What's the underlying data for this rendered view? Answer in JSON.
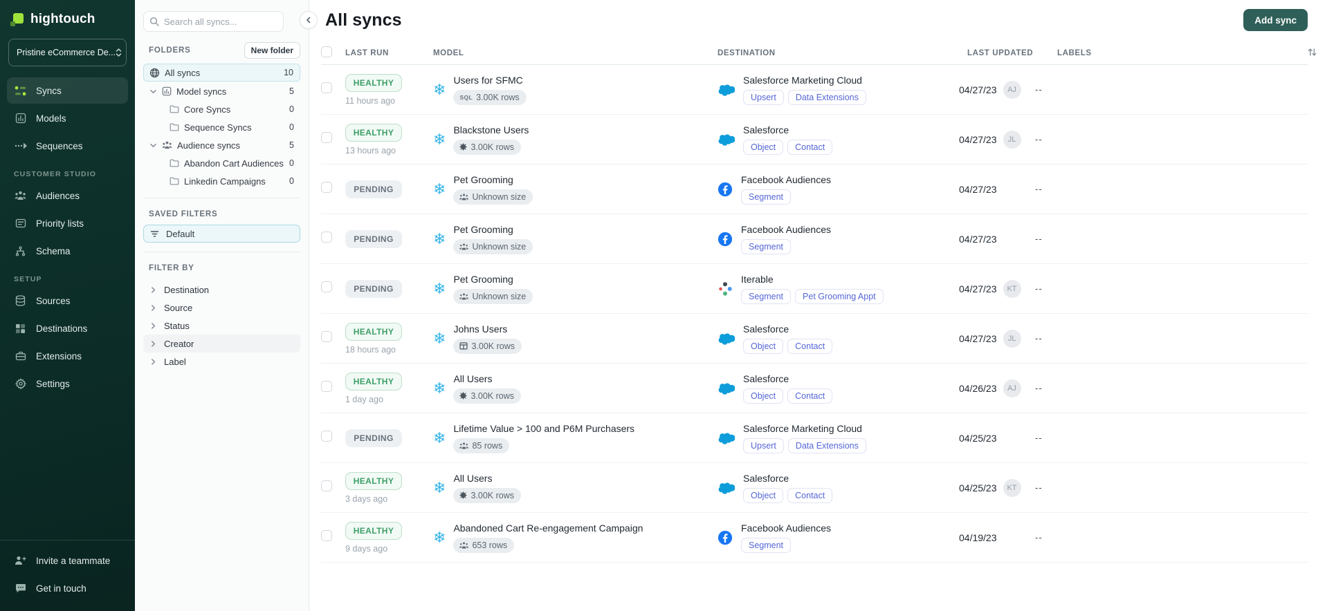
{
  "brand": {
    "name": "hightouch",
    "workspace": "Pristine eCommerce De..."
  },
  "colors": {
    "brand_lime": "#9fe23b",
    "sidebar_bg": "#0c2e29",
    "add_button": "#2e5f58",
    "healthy_green": "#3e9e68",
    "pending_gray": "#68727c",
    "snowflake_blue": "#35b4e7",
    "salesforce_blue": "#0d9dda",
    "facebook_blue": "#1877f2",
    "tag_blue": "#5566d6",
    "selected_row_bg": "#ecf7f9"
  },
  "sidebar": {
    "nav": [
      {
        "label": "Syncs",
        "icon": "syncs",
        "active": true
      },
      {
        "label": "Models",
        "icon": "models",
        "active": false
      },
      {
        "label": "Sequences",
        "icon": "sequences",
        "active": false
      }
    ],
    "sections": [
      {
        "title": "CUSTOMER STUDIO",
        "items": [
          {
            "label": "Audiences",
            "icon": "audiences"
          },
          {
            "label": "Priority lists",
            "icon": "priority"
          },
          {
            "label": "Schema",
            "icon": "schema"
          }
        ]
      },
      {
        "title": "SETUP",
        "items": [
          {
            "label": "Sources",
            "icon": "sources"
          },
          {
            "label": "Destinations",
            "icon": "destinations"
          },
          {
            "label": "Extensions",
            "icon": "extensions"
          },
          {
            "label": "Settings",
            "icon": "settings"
          }
        ]
      }
    ],
    "footer": [
      {
        "label": "Invite a teammate",
        "icon": "invite"
      },
      {
        "label": "Get in touch",
        "icon": "chat"
      }
    ]
  },
  "explorer": {
    "search_placeholder": "Search all syncs...",
    "folders_title": "FOLDERS",
    "new_folder_label": "New folder",
    "folders": [
      {
        "label": "All syncs",
        "count": 10,
        "icon": "globe",
        "depth": 0,
        "selected": true,
        "expandable": false
      },
      {
        "label": "Model syncs",
        "count": 5,
        "icon": "model-folder",
        "depth": 1,
        "selected": false,
        "expandable": true
      },
      {
        "label": "Core Syncs",
        "count": 0,
        "icon": "folder",
        "depth": 2,
        "selected": false,
        "expandable": false
      },
      {
        "label": "Sequence Syncs",
        "count": 0,
        "icon": "folder",
        "depth": 2,
        "selected": false,
        "expandable": false
      },
      {
        "label": "Audience syncs",
        "count": 5,
        "icon": "audience-folder",
        "depth": 1,
        "selected": false,
        "expandable": true
      },
      {
        "label": "Abandon Cart Audiences",
        "count": 0,
        "icon": "folder",
        "depth": 2,
        "selected": false,
        "expandable": false
      },
      {
        "label": "Linkedin Campaigns",
        "count": 0,
        "icon": "folder",
        "depth": 2,
        "selected": false,
        "expandable": false
      }
    ],
    "saved_filters_title": "SAVED FILTERS",
    "saved_filters": [
      {
        "label": "Default",
        "selected": true
      }
    ],
    "filter_by_title": "FILTER BY",
    "filters": [
      {
        "label": "Destination",
        "hovered": false
      },
      {
        "label": "Source",
        "hovered": false
      },
      {
        "label": "Status",
        "hovered": false
      },
      {
        "label": "Creator",
        "hovered": true
      },
      {
        "label": "Label",
        "hovered": false
      }
    ]
  },
  "main": {
    "title": "All syncs",
    "add_sync_label": "Add sync",
    "table": {
      "columns": [
        "LAST RUN",
        "MODEL",
        "DESTINATION",
        "LAST UPDATED",
        "LABELS"
      ],
      "rows": [
        {
          "status": "HEALTHY",
          "health": "healthy",
          "last_run": "11 hours ago",
          "model": "Users for SFMC",
          "model_icon": "snowflake",
          "size": "3.00K rows",
          "size_icon": "sql",
          "destination": "Salesforce Marketing Cloud",
          "destination_icon": "salesforce",
          "tags": [
            "Upsert",
            "Data Extensions"
          ],
          "updated": "04/27/23",
          "avatar": "AJ",
          "labels": "--"
        },
        {
          "status": "HEALTHY",
          "health": "healthy",
          "last_run": "13 hours ago",
          "model": "Blackstone Users",
          "model_icon": "snowflake",
          "size": "3.00K rows",
          "size_icon": "dbt",
          "destination": "Salesforce",
          "destination_icon": "salesforce",
          "tags": [
            "Object",
            "Contact"
          ],
          "updated": "04/27/23",
          "avatar": "JL",
          "labels": "--"
        },
        {
          "status": "PENDING",
          "health": "pending",
          "last_run": "",
          "model": "Pet Grooming",
          "model_icon": "snowflake",
          "size": "Unknown size",
          "size_icon": "people",
          "destination": "Facebook Audiences",
          "destination_icon": "facebook",
          "tags": [
            "Segment"
          ],
          "updated": "04/27/23",
          "avatar": "",
          "labels": "--"
        },
        {
          "status": "PENDING",
          "health": "pending",
          "last_run": "",
          "model": "Pet Grooming",
          "model_icon": "snowflake",
          "size": "Unknown size",
          "size_icon": "people",
          "destination": "Facebook Audiences",
          "destination_icon": "facebook",
          "tags": [
            "Segment"
          ],
          "updated": "04/27/23",
          "avatar": "",
          "labels": "--"
        },
        {
          "status": "PENDING",
          "health": "pending",
          "last_run": "",
          "model": "Pet Grooming",
          "model_icon": "snowflake",
          "size": "Unknown size",
          "size_icon": "people",
          "destination": "Iterable",
          "destination_icon": "iterable",
          "tags": [
            "Segment",
            "Pet Grooming Appt"
          ],
          "updated": "04/27/23",
          "avatar": "KT",
          "labels": "--"
        },
        {
          "status": "HEALTHY",
          "health": "healthy",
          "last_run": "18 hours ago",
          "model": "Johns Users",
          "model_icon": "snowflake",
          "size": "3.00K rows",
          "size_icon": "table",
          "destination": "Salesforce",
          "destination_icon": "salesforce",
          "tags": [
            "Object",
            "Contact"
          ],
          "updated": "04/27/23",
          "avatar": "JL",
          "labels": "--"
        },
        {
          "status": "HEALTHY",
          "health": "healthy",
          "last_run": "1 day ago",
          "model": "All Users",
          "model_icon": "snowflake",
          "size": "3.00K rows",
          "size_icon": "dbt",
          "destination": "Salesforce",
          "destination_icon": "salesforce",
          "tags": [
            "Object",
            "Contact"
          ],
          "updated": "04/26/23",
          "avatar": "AJ",
          "labels": "--"
        },
        {
          "status": "PENDING",
          "health": "pending",
          "last_run": "",
          "model": "Lifetime Value > 100 and P6M Purchasers",
          "model_icon": "snowflake",
          "size": "85 rows",
          "size_icon": "people",
          "destination": "Salesforce Marketing Cloud",
          "destination_icon": "salesforce",
          "tags": [
            "Upsert",
            "Data Extensions"
          ],
          "updated": "04/25/23",
          "avatar": "",
          "labels": "--"
        },
        {
          "status": "HEALTHY",
          "health": "healthy",
          "last_run": "3 days ago",
          "model": "All Users",
          "model_icon": "snowflake",
          "size": "3.00K rows",
          "size_icon": "dbt",
          "destination": "Salesforce",
          "destination_icon": "salesforce",
          "tags": [
            "Object",
            "Contact"
          ],
          "updated": "04/25/23",
          "avatar": "KT",
          "labels": "--"
        },
        {
          "status": "HEALTHY",
          "health": "healthy",
          "last_run": "9 days ago",
          "model": "Abandoned Cart Re-engagement Campaign",
          "model_icon": "snowflake",
          "size": "653 rows",
          "size_icon": "people",
          "destination": "Facebook Audiences",
          "destination_icon": "facebook",
          "tags": [
            "Segment"
          ],
          "updated": "04/19/23",
          "avatar": "",
          "labels": "--"
        }
      ]
    }
  }
}
